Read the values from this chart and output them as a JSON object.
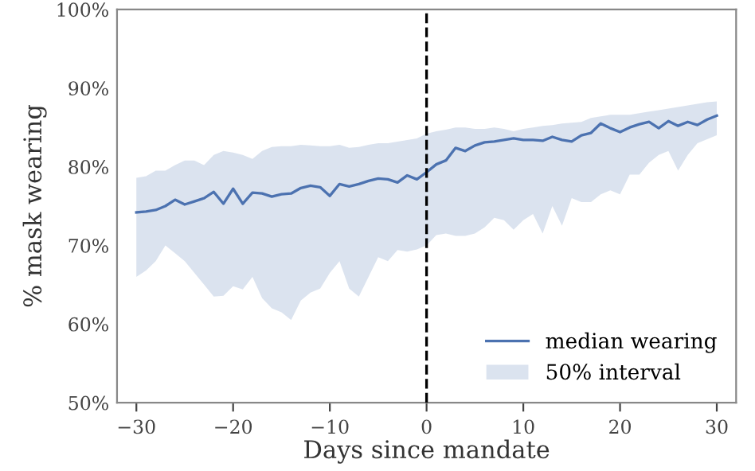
{
  "chart_data": {
    "type": "line",
    "xlabel": "Days since mandate",
    "ylabel": "% mask wearing",
    "x": [
      -30,
      -29,
      -28,
      -27,
      -26,
      -25,
      -24,
      -23,
      -22,
      -21,
      -20,
      -19,
      -18,
      -17,
      -16,
      -15,
      -14,
      -13,
      -12,
      -11,
      -10,
      -9,
      -8,
      -7,
      -6,
      -5,
      -4,
      -3,
      -2,
      -1,
      0,
      1,
      2,
      3,
      4,
      5,
      6,
      7,
      8,
      9,
      10,
      11,
      12,
      13,
      14,
      15,
      16,
      17,
      18,
      19,
      20,
      21,
      22,
      23,
      24,
      25,
      26,
      27,
      28,
      29,
      30
    ],
    "series": [
      {
        "name": "median wearing",
        "color": "#4c72b0",
        "values": [
          74.2,
          74.3,
          74.5,
          75,
          75.8,
          75.2,
          75.6,
          76,
          76.8,
          75.3,
          77.2,
          75.3,
          76.7,
          76.6,
          76.2,
          76.5,
          76.6,
          77.3,
          77.6,
          77.4,
          76.3,
          77.8,
          77.5,
          77.8,
          78.2,
          78.5,
          78.4,
          78,
          78.9,
          78.4,
          79.3,
          80.3,
          80.8,
          82.4,
          82,
          82.7,
          83.1,
          83.2,
          83.4,
          83.6,
          83.4,
          83.4,
          83.3,
          83.8,
          83.4,
          83.2,
          84,
          84.3,
          85.5,
          84.9,
          84.4,
          85,
          85.4,
          85.7,
          84.9,
          85.8,
          85.2,
          85.7,
          85.3,
          86,
          86.5
        ],
        "lower": [
          66,
          66.8,
          68,
          70,
          69,
          68,
          66.5,
          65,
          63.5,
          63.6,
          64.8,
          64.4,
          66,
          63.3,
          62,
          61.5,
          60.5,
          63,
          64,
          64.5,
          66.5,
          68,
          64.5,
          63.5,
          66,
          68.5,
          68,
          69.4,
          69.2,
          69.5,
          70,
          71.3,
          71.5,
          71.2,
          71.2,
          71.5,
          72.3,
          73.5,
          73.2,
          72,
          73.2,
          74,
          71.5,
          75,
          72.5,
          76,
          75.5,
          75.5,
          76.5,
          77,
          76.5,
          79,
          79,
          80.5,
          81.5,
          82,
          79.5,
          81.5,
          83,
          83.5,
          84
        ],
        "upper": [
          78.6,
          78.8,
          79.5,
          79.5,
          80.2,
          80.8,
          80.8,
          80.2,
          81.5,
          82,
          81.8,
          81.5,
          81,
          82,
          82.5,
          82.6,
          82.6,
          82.8,
          82.7,
          82.6,
          82.6,
          82.8,
          82.4,
          82.5,
          82.8,
          83,
          83,
          83.2,
          83.4,
          83.6,
          84.2,
          84.5,
          84.7,
          85,
          85,
          84.8,
          84.8,
          85,
          84.8,
          84.5,
          84.8,
          85,
          85.2,
          85.3,
          85.5,
          85.6,
          85.7,
          86.2,
          86.4,
          86.6,
          86.6,
          86.6,
          86.8,
          87,
          87.2,
          87.4,
          87.6,
          87.8,
          88,
          88.2,
          88.3
        ]
      }
    ],
    "annotations": [
      "50% interval"
    ],
    "xlim": [
      -32,
      32
    ],
    "ylim": [
      50,
      100
    ],
    "xticks": [
      {
        "value": -30,
        "label": "−30"
      },
      {
        "value": -20,
        "label": "−20"
      },
      {
        "value": -10,
        "label": "−10"
      },
      0,
      10,
      20,
      30
    ],
    "yticks": [
      {
        "value": 50,
        "label": "50%"
      },
      {
        "value": 60,
        "label": "60%"
      },
      {
        "value": 70,
        "label": "70%"
      },
      {
        "value": 80,
        "label": "80%"
      },
      {
        "value": 90,
        "label": "90%"
      },
      {
        "value": 100,
        "label": "100%"
      }
    ],
    "ref_lines": [
      {
        "axis": "x",
        "value": 0,
        "color": "#000000",
        "line_style": "dashed"
      }
    ],
    "legend": "bottom right",
    "grid": false
  }
}
